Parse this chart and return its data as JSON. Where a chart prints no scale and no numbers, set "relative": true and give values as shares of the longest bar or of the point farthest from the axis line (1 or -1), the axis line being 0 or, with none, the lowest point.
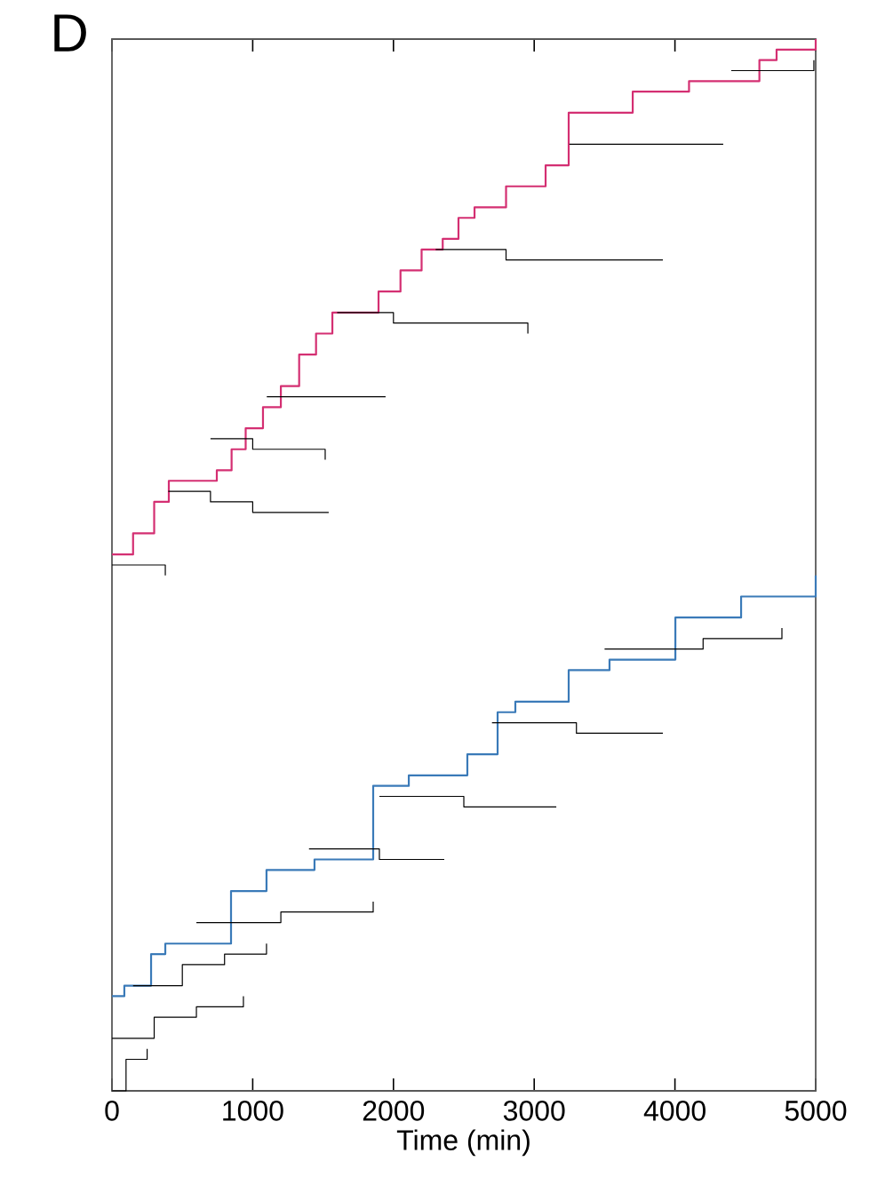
{
  "chart_data": {
    "type": "step",
    "relative": true,
    "xlabel": "Time (min)",
    "annotations": [
      "D"
    ],
    "xlim": [
      0,
      5000
    ],
    "xticks": [
      0,
      1000,
      2000,
      3000,
      4000,
      5000
    ],
    "tick_labels": "x",
    "marker": "none",
    "series": [
      {
        "color": "#d42f72",
        "x": [
          0,
          150,
          300,
          404,
          745,
          850,
          950,
          1073,
          1200,
          1330,
          1450,
          1566,
          1894,
          2050,
          2200,
          2350,
          2462,
          2576,
          2800,
          3081,
          3245,
          3700,
          4100,
          4381,
          4600,
          4722,
          5000
        ],
        "values": [
          0.51,
          0.53,
          0.56,
          0.58,
          0.59,
          0.61,
          0.63,
          0.65,
          0.67,
          0.7,
          0.72,
          0.74,
          0.76,
          0.78,
          0.8,
          0.81,
          0.83,
          0.84,
          0.86,
          0.88,
          0.93,
          0.95,
          0.96,
          0.96,
          0.98,
          0.99,
          1.0
        ]
      },
      {
        "color": "#3a7ab8",
        "x": [
          0,
          88,
          278,
          379,
          846,
          1098,
          1439,
          1856,
          2109,
          2525,
          2740,
          2866,
          3245,
          3535,
          4003,
          4470,
          5000
        ],
        "values": [
          0.09,
          0.1,
          0.13,
          0.14,
          0.19,
          0.21,
          0.22,
          0.29,
          0.3,
          0.32,
          0.36,
          0.37,
          0.4,
          0.41,
          0.45,
          0.47,
          0.49
        ]
      },
      {
        "color": "#000000",
        "x": [
          400,
          700,
          1000,
          1540
        ],
        "values": [
          0.57,
          0.56,
          0.55,
          0.55
        ]
      },
      {
        "color": "#000000",
        "x": [
          0,
          200,
          379
        ],
        "values": [
          0.5,
          0.5,
          0.49
        ]
      },
      {
        "color": "#000000",
        "x": [
          700,
          1000,
          1515
        ],
        "values": [
          0.62,
          0.61,
          0.6
        ]
      },
      {
        "color": "#000000",
        "x": [
          1100,
          1500,
          1944
        ],
        "values": [
          0.66,
          0.66,
          0.66
        ]
      },
      {
        "color": "#000000",
        "x": [
          1600,
          2000,
          2500,
          2955
        ],
        "values": [
          0.74,
          0.73,
          0.73,
          0.72
        ]
      },
      {
        "color": "#000000",
        "x": [
          2300,
          2800,
          3300,
          3914
        ],
        "values": [
          0.8,
          0.79,
          0.79,
          0.79
        ]
      },
      {
        "color": "#000000",
        "x": [
          3250,
          3700,
          4343
        ],
        "values": [
          0.9,
          0.9,
          0.9
        ]
      },
      {
        "color": "#000000",
        "x": [
          4400,
          4700,
          4987
        ],
        "values": [
          0.97,
          0.97,
          0.98
        ]
      },
      {
        "color": "#000000",
        "x": [
          0,
          300,
          600,
          934
        ],
        "values": [
          0.05,
          0.07,
          0.08,
          0.09
        ]
      },
      {
        "color": "#000000",
        "x": [
          150,
          500,
          800,
          1098
        ],
        "values": [
          0.1,
          0.12,
          0.13,
          0.14
        ]
      },
      {
        "color": "#000000",
        "x": [
          600,
          1200,
          1856
        ],
        "values": [
          0.16,
          0.17,
          0.18
        ]
      },
      {
        "color": "#000000",
        "x": [
          1400,
          1900,
          2361
        ],
        "values": [
          0.23,
          0.22,
          0.22
        ]
      },
      {
        "color": "#000000",
        "x": [
          1900,
          2500,
          3157
        ],
        "values": [
          0.28,
          0.27,
          0.27
        ]
      },
      {
        "color": "#000000",
        "x": [
          2700,
          3300,
          3914
        ],
        "values": [
          0.35,
          0.34,
          0.34
        ]
      },
      {
        "color": "#000000",
        "x": [
          3500,
          4200,
          4760
        ],
        "values": [
          0.42,
          0.43,
          0.44
        ]
      },
      {
        "color": "#000000",
        "x": [
          0,
          100,
          250
        ],
        "values": [
          0.0,
          0.03,
          0.04
        ]
      }
    ]
  }
}
